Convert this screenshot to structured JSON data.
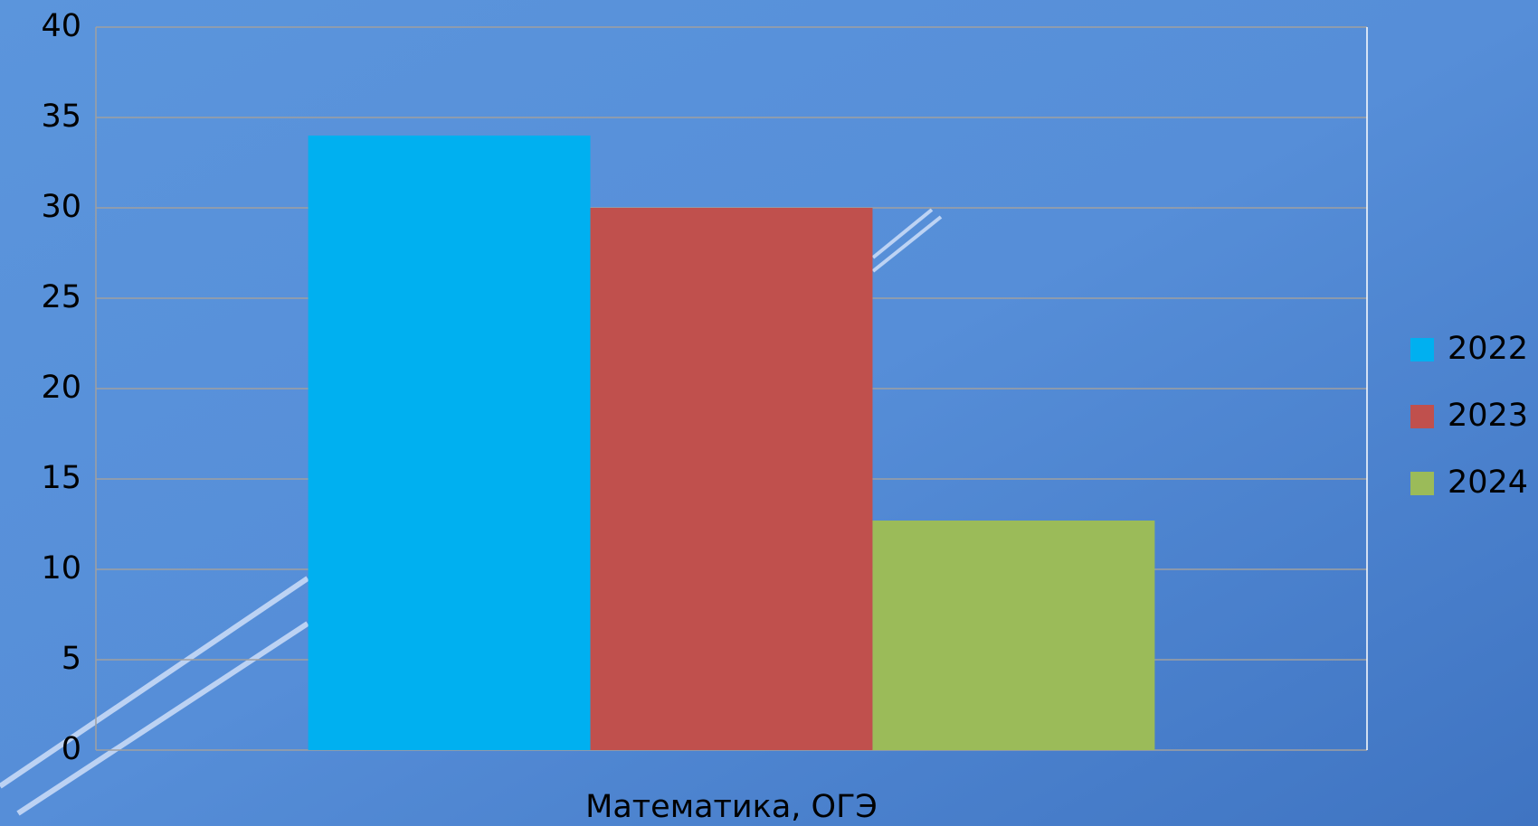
{
  "chart_data": {
    "type": "bar",
    "categories": [
      "Математика, ОГЭ"
    ],
    "series": [
      {
        "name": "2022",
        "color": "#00b0f0",
        "values": [
          34
        ]
      },
      {
        "name": "2023",
        "color": "#c0504d",
        "values": [
          30
        ]
      },
      {
        "name": "2024",
        "color": "#9bbb59",
        "values": [
          12.7
        ]
      }
    ],
    "ylim": [
      0,
      40
    ],
    "yticks": [
      0,
      5,
      10,
      15,
      20,
      25,
      30,
      35,
      40
    ],
    "grid": true,
    "legend": "right"
  }
}
